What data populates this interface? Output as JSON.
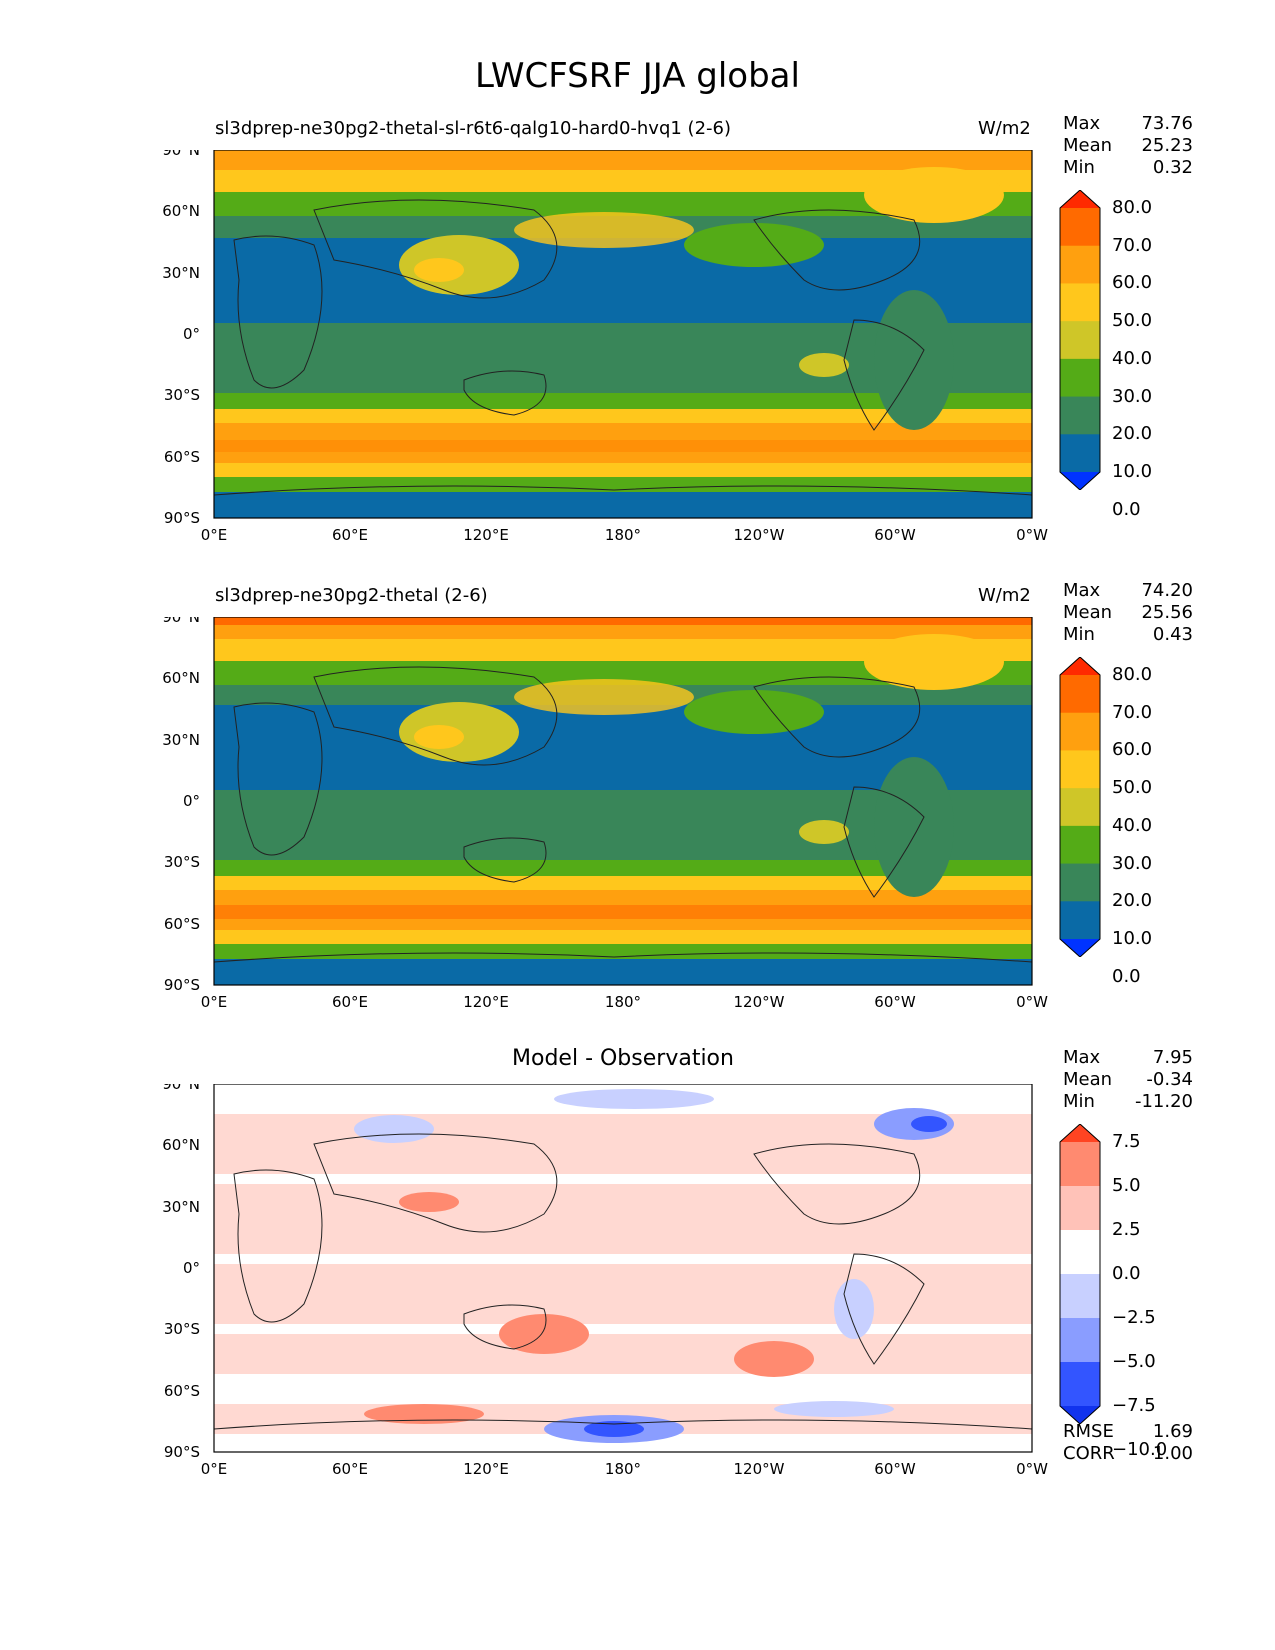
{
  "title": "LWCFSRF JJA global",
  "lat_ticks": [
    "90°N",
    "60°N",
    "30°N",
    "0°",
    "30°S",
    "60°S",
    "90°S"
  ],
  "lon_ticks": [
    "0°E",
    "60°E",
    "120°E",
    "180°",
    "120°W",
    "60°W",
    "0°W"
  ],
  "panels": [
    {
      "left_title": "sl3dprep-ne30pg2-thetal-sl-r6t6-qalg10-hard0-hvq1 (2-6)",
      "units": "W/m2",
      "stats": [
        {
          "label": "Max",
          "value": "73.76"
        },
        {
          "label": "Mean",
          "value": "25.23"
        },
        {
          "label": "Min",
          "value": "0.32"
        }
      ],
      "colorbar_levels": [
        "80.0",
        "70.0",
        "60.0",
        "50.0",
        "40.0",
        "30.0",
        "20.0",
        "10.0",
        "0.0"
      ],
      "colorbar_colors": [
        "#ff2a00",
        "#ff6a00",
        "#ffa00f",
        "#ffc71c",
        "#cfc628",
        "#54ab17",
        "#398659",
        "#0a6aa6",
        "#0033ff"
      ]
    },
    {
      "left_title": "sl3dprep-ne30pg2-thetal (2-6)",
      "units": "W/m2",
      "stats": [
        {
          "label": "Max",
          "value": "74.20"
        },
        {
          "label": "Mean",
          "value": "25.56"
        },
        {
          "label": "Min",
          "value": "0.43"
        }
      ],
      "colorbar_levels": [
        "80.0",
        "70.0",
        "60.0",
        "50.0",
        "40.0",
        "30.0",
        "20.0",
        "10.0",
        "0.0"
      ],
      "colorbar_colors": [
        "#ff2a00",
        "#ff6a00",
        "#ffa00f",
        "#ffc71c",
        "#cfc628",
        "#54ab17",
        "#398659",
        "#0a6aa6",
        "#0033ff"
      ]
    },
    {
      "center_title": "Model - Observation",
      "stats": [
        {
          "label": "Max",
          "value": "7.95"
        },
        {
          "label": "Mean",
          "value": "-0.34"
        },
        {
          "label": "Min",
          "value": "-11.20"
        }
      ],
      "colorbar_levels": [
        "7.5",
        "5.0",
        "2.5",
        "0.0",
        "−2.5",
        "−5.0",
        "−7.5",
        "−10.0"
      ],
      "colorbar_colors": [
        "#ff4422",
        "#ff8a70",
        "#ffc2b8",
        "#ffffff",
        "#c8d0ff",
        "#8a9dff",
        "#3355ff",
        "#1133ee"
      ],
      "metrics": [
        {
          "label": "RMSE",
          "value": "1.69"
        },
        {
          "label": "CORR",
          "value": "1.00"
        }
      ]
    }
  ]
}
